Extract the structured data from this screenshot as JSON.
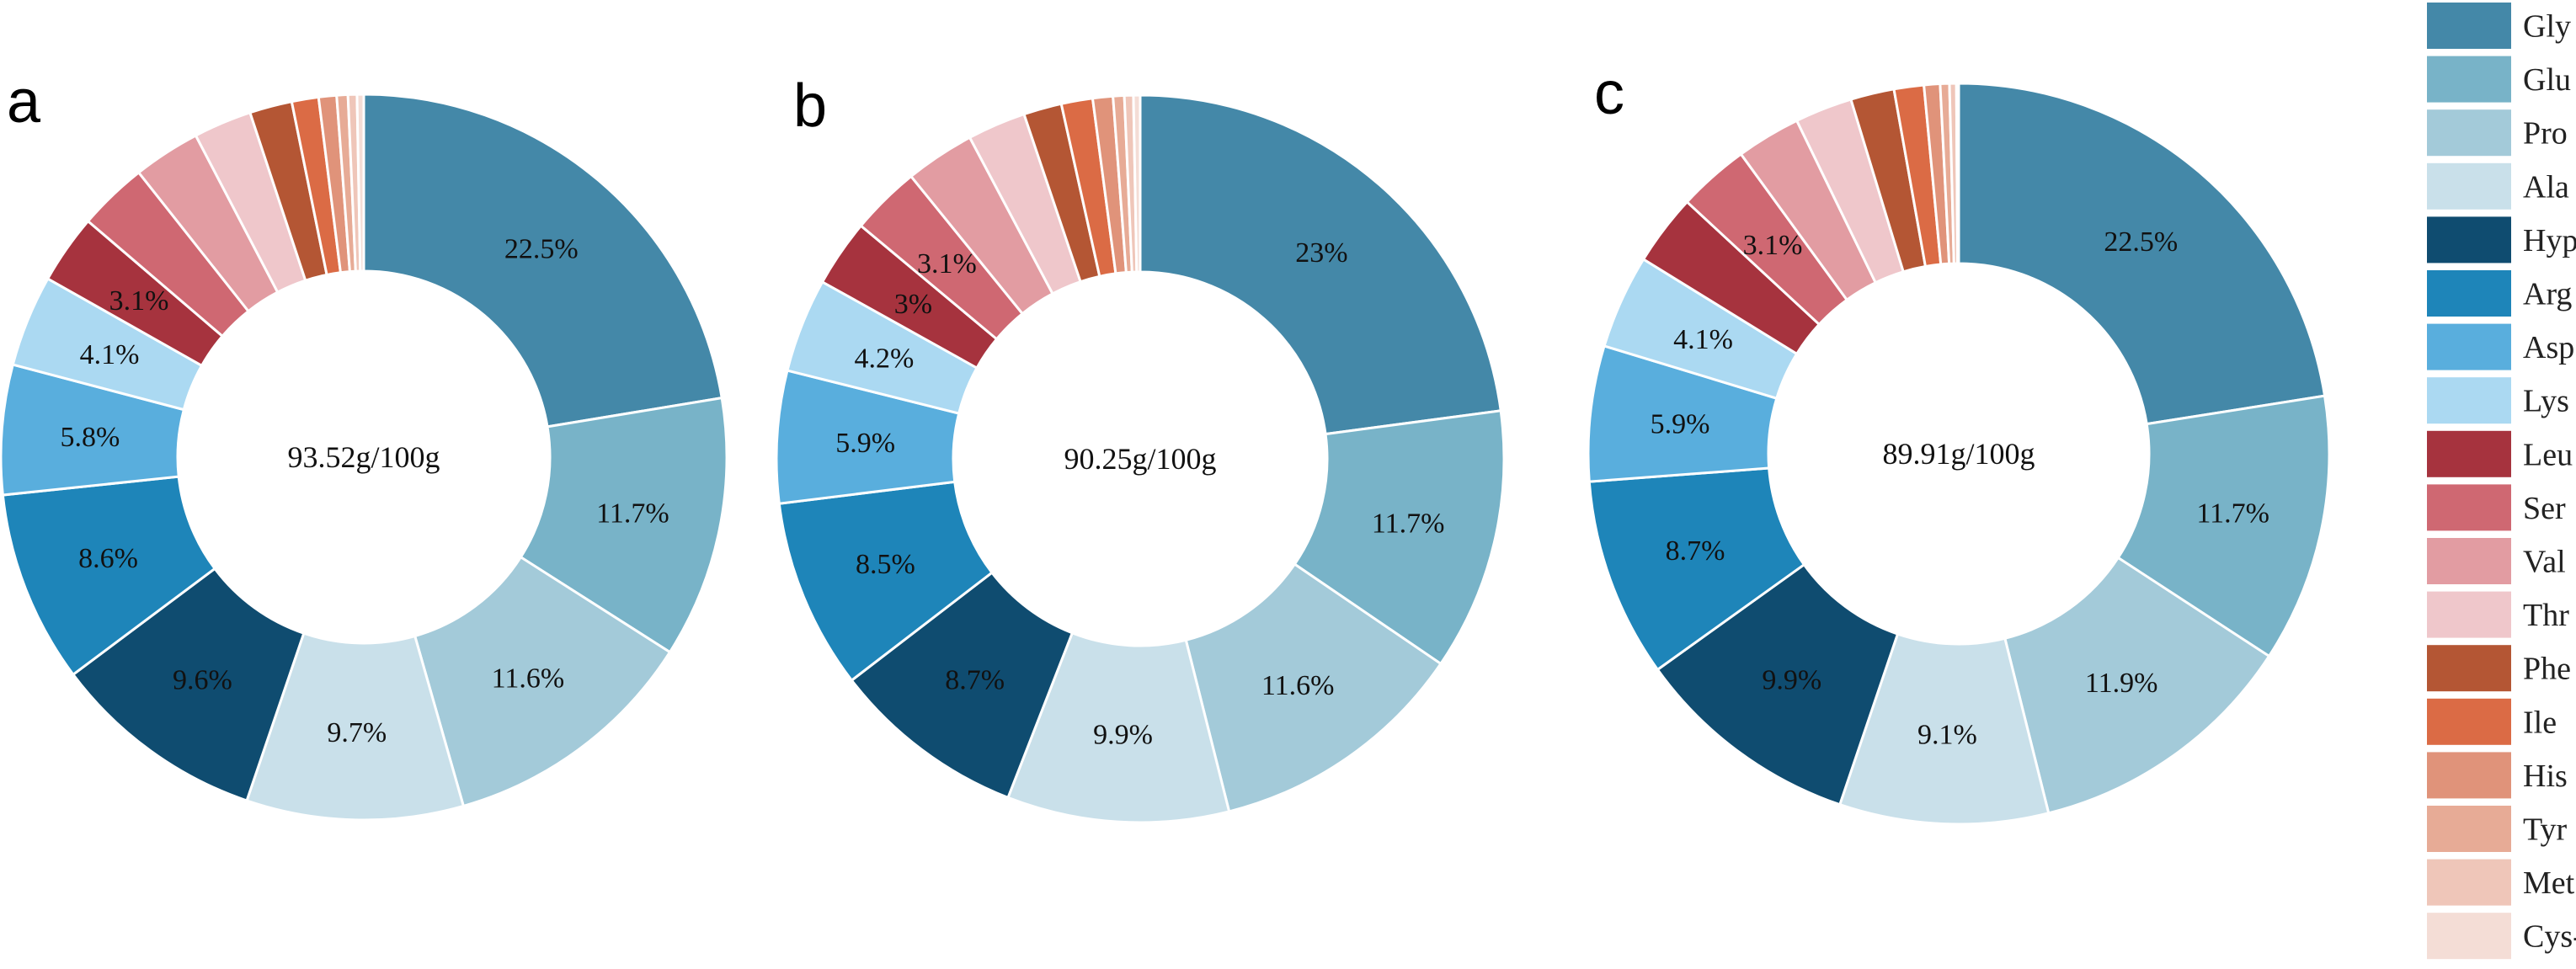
{
  "legend": {
    "items": [
      "Gly",
      "Glu",
      "Pro",
      "Ala",
      "Hyp",
      "Arg",
      "Asp",
      "Lys",
      "Leu",
      "Ser",
      "Val",
      "Thr",
      "Phe",
      "Ile",
      "His",
      "Tyr",
      "Met",
      "Cys-s"
    ],
    "colors": [
      "#4488a8",
      "#78b3c8",
      "#a3cad9",
      "#c9e0ea",
      "#0f4c70",
      "#1e85b9",
      "#59aedd",
      "#abd9f2",
      "#a6333e",
      "#cf6872",
      "#e29ca2",
      "#efc7cb",
      "#b45634",
      "#db6b45",
      "#e0937a",
      "#e7ab96",
      "#efc6b9",
      "#f4ddd6"
    ]
  },
  "chart_data": [
    {
      "type": "pie",
      "panel": "a",
      "center_label": "93.52g/100g",
      "categories": [
        "Gly",
        "Glu",
        "Pro",
        "Ala",
        "Hyp",
        "Arg",
        "Asp",
        "Lys",
        "Leu",
        "Ser",
        "Val",
        "Thr",
        "Phe",
        "Ile",
        "His",
        "Tyr",
        "Met",
        "Cys-s"
      ],
      "values": [
        22.5,
        11.7,
        11.6,
        9.7,
        9.6,
        8.6,
        5.8,
        4.1,
        3.1,
        3.1,
        3.0,
        2.6,
        1.9,
        1.2,
        0.8,
        0.5,
        0.4,
        0.3
      ],
      "labels": [
        "22.5%",
        "11.7%",
        "11.6%",
        "9.7%",
        "9.6%",
        "8.6%",
        "5.8%",
        "4.1%",
        "3.1%",
        "",
        "",
        "",
        "",
        "",
        "",
        "",
        "",
        ""
      ]
    },
    {
      "type": "pie",
      "panel": "b",
      "center_label": "90.25g/100g",
      "categories": [
        "Gly",
        "Glu",
        "Pro",
        "Ala",
        "Hyp",
        "Arg",
        "Asp",
        "Lys",
        "Leu",
        "Ser",
        "Val",
        "Thr",
        "Phe",
        "Ile",
        "His",
        "Tyr",
        "Met",
        "Cys-s"
      ],
      "values": [
        23.0,
        11.7,
        11.6,
        9.9,
        8.7,
        8.5,
        5.9,
        4.2,
        3.0,
        3.1,
        3.1,
        2.6,
        1.7,
        1.4,
        0.9,
        0.5,
        0.4,
        0.3
      ],
      "labels": [
        "23%",
        "11.7%",
        "11.6%",
        "9.9%",
        "8.7%",
        "8.5%",
        "5.9%",
        "4.2%",
        "3%",
        "3.1%",
        "",
        "",
        "",
        "",
        "",
        "",
        "",
        ""
      ]
    },
    {
      "type": "pie",
      "panel": "c",
      "center_label": "89.91g/100g",
      "categories": [
        "Gly",
        "Glu",
        "Pro",
        "Ala",
        "Hyp",
        "Arg",
        "Asp",
        "Lys",
        "Leu",
        "Ser",
        "Val",
        "Thr",
        "Phe",
        "Ile",
        "His",
        "Tyr",
        "Met",
        "Cys-s"
      ],
      "values": [
        22.5,
        11.7,
        11.9,
        9.1,
        9.9,
        8.7,
        5.9,
        4.1,
        3.1,
        3.1,
        2.8,
        2.5,
        1.9,
        1.3,
        0.7,
        0.4,
        0.3,
        0.1
      ],
      "labels": [
        "22.5%",
        "11.7%",
        "11.9%",
        "9.1%",
        "9.9%",
        "8.7%",
        "5.9%",
        "4.1%",
        "",
        "3.1%",
        "",
        "",
        "",
        "",
        "",
        "",
        "",
        ""
      ]
    }
  ]
}
